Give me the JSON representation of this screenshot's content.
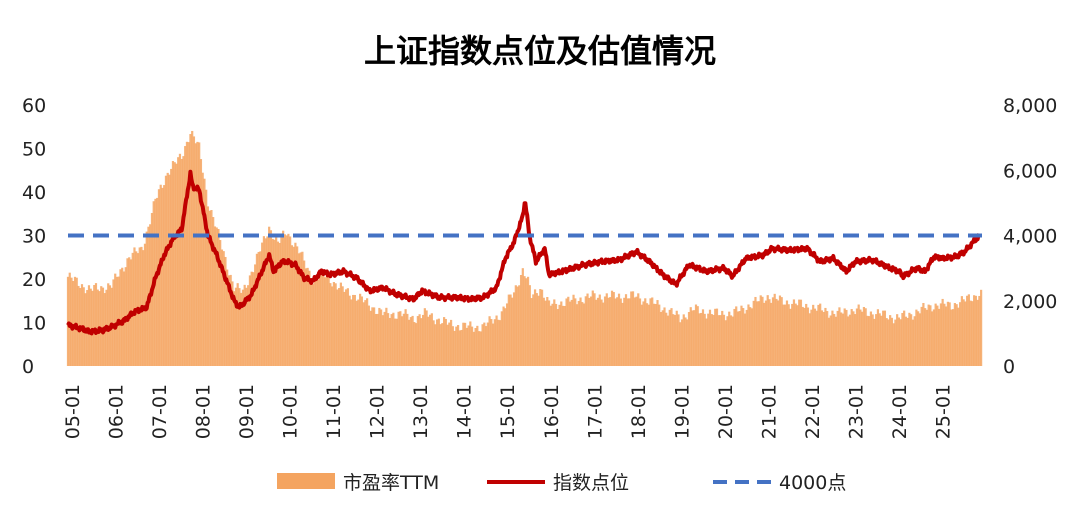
{
  "chart_data": {
    "type": "bar",
    "title": "上证指数点位及估值情况",
    "xlabel": "",
    "ylabel": "",
    "y_left": {
      "ylim": [
        0,
        60
      ],
      "ticks": [
        "0",
        "10",
        "20",
        "30",
        "40",
        "50",
        "60"
      ]
    },
    "y_right": {
      "ylim": [
        0,
        8000
      ],
      "ticks": [
        "0",
        "2,000",
        "4,000",
        "6,000",
        "8,000"
      ]
    },
    "x_ticks": [
      "05-01",
      "06-01",
      "07-01",
      "08-01",
      "09-01",
      "10-01",
      "11-01",
      "12-01",
      "13-01",
      "14-01",
      "15-01",
      "16-01",
      "17-01",
      "18-01",
      "19-01",
      "20-01",
      "21-01",
      "22-01",
      "23-01",
      "24-01",
      "25-01"
    ],
    "grid": false,
    "legend_position": "bottom",
    "series": [
      {
        "name": "市盈率TTM",
        "type": "bar",
        "axis": "left",
        "color": "#F4A460",
        "points": [
          [
            2005.0,
            20.5
          ],
          [
            2005.5,
            17.5
          ],
          [
            2006.0,
            18.5
          ],
          [
            2006.4,
            25
          ],
          [
            2006.7,
            27
          ],
          [
            2007.0,
            38
          ],
          [
            2007.3,
            45
          ],
          [
            2007.6,
            48
          ],
          [
            2007.8,
            54
          ],
          [
            2008.0,
            50
          ],
          [
            2008.2,
            38
          ],
          [
            2008.5,
            28
          ],
          [
            2008.8,
            18
          ],
          [
            2009.0,
            17
          ],
          [
            2009.3,
            24
          ],
          [
            2009.6,
            32
          ],
          [
            2009.8,
            28
          ],
          [
            2010.0,
            31
          ],
          [
            2010.3,
            26
          ],
          [
            2010.6,
            20
          ],
          [
            2010.9,
            21
          ],
          [
            2011.2,
            18
          ],
          [
            2011.6,
            16
          ],
          [
            2011.9,
            14
          ],
          [
            2012.2,
            12
          ],
          [
            2012.6,
            12
          ],
          [
            2012.9,
            11
          ],
          [
            2013.2,
            12
          ],
          [
            2013.6,
            10
          ],
          [
            2014.0,
            9
          ],
          [
            2014.5,
            9
          ],
          [
            2014.9,
            12
          ],
          [
            2015.2,
            17
          ],
          [
            2015.4,
            22
          ],
          [
            2015.5,
            20
          ],
          [
            2015.6,
            16
          ],
          [
            2015.8,
            18
          ],
          [
            2016.0,
            14
          ],
          [
            2016.5,
            15
          ],
          [
            2017.0,
            16
          ],
          [
            2017.5,
            16
          ],
          [
            2018.0,
            16
          ],
          [
            2018.5,
            14
          ],
          [
            2019.0,
            11
          ],
          [
            2019.3,
            13
          ],
          [
            2019.8,
            12
          ],
          [
            2020.2,
            12
          ],
          [
            2020.6,
            14
          ],
          [
            2021.0,
            16
          ],
          [
            2021.3,
            15
          ],
          [
            2021.8,
            14
          ],
          [
            2022.2,
            13
          ],
          [
            2022.6,
            12
          ],
          [
            2023.0,
            13
          ],
          [
            2023.5,
            12
          ],
          [
            2024.0,
            11
          ],
          [
            2024.3,
            12
          ],
          [
            2024.8,
            14
          ],
          [
            2025.2,
            14
          ],
          [
            2025.5,
            15
          ],
          [
            2025.8,
            16.5
          ]
        ]
      },
      {
        "name": "指数点位",
        "type": "line",
        "axis": "right",
        "color": "#C00000",
        "points": [
          [
            2005.0,
            1250
          ],
          [
            2005.3,
            1150
          ],
          [
            2005.5,
            1050
          ],
          [
            2005.8,
            1100
          ],
          [
            2006.0,
            1200
          ],
          [
            2006.3,
            1400
          ],
          [
            2006.5,
            1650
          ],
          [
            2006.8,
            1800
          ],
          [
            2007.0,
            2700
          ],
          [
            2007.2,
            3400
          ],
          [
            2007.4,
            3900
          ],
          [
            2007.6,
            4200
          ],
          [
            2007.8,
            5900
          ],
          [
            2007.85,
            5500
          ],
          [
            2008.0,
            5400
          ],
          [
            2008.2,
            4000
          ],
          [
            2008.4,
            3400
          ],
          [
            2008.6,
            2700
          ],
          [
            2008.8,
            2000
          ],
          [
            2008.9,
            1800
          ],
          [
            2009.0,
            1900
          ],
          [
            2009.2,
            2200
          ],
          [
            2009.5,
            3100
          ],
          [
            2009.6,
            3400
          ],
          [
            2009.7,
            2900
          ],
          [
            2009.9,
            3200
          ],
          [
            2010.0,
            3200
          ],
          [
            2010.2,
            3100
          ],
          [
            2010.4,
            2700
          ],
          [
            2010.6,
            2600
          ],
          [
            2010.8,
            2900
          ],
          [
            2011.0,
            2800
          ],
          [
            2011.3,
            2900
          ],
          [
            2011.6,
            2700
          ],
          [
            2011.9,
            2300
          ],
          [
            2012.2,
            2400
          ],
          [
            2012.5,
            2200
          ],
          [
            2012.9,
            2050
          ],
          [
            2013.1,
            2300
          ],
          [
            2013.5,
            2100
          ],
          [
            2013.9,
            2100
          ],
          [
            2014.2,
            2050
          ],
          [
            2014.5,
            2100
          ],
          [
            2014.8,
            2400
          ],
          [
            2015.0,
            3300
          ],
          [
            2015.2,
            3800
          ],
          [
            2015.4,
            4600
          ],
          [
            2015.45,
            5100
          ],
          [
            2015.55,
            4000
          ],
          [
            2015.7,
            3200
          ],
          [
            2015.9,
            3600
          ],
          [
            2016.0,
            2800
          ],
          [
            2016.3,
            2900
          ],
          [
            2016.8,
            3100
          ],
          [
            2017.2,
            3200
          ],
          [
            2017.6,
            3250
          ],
          [
            2018.0,
            3500
          ],
          [
            2018.3,
            3200
          ],
          [
            2018.6,
            2800
          ],
          [
            2018.9,
            2500
          ],
          [
            2019.2,
            3100
          ],
          [
            2019.6,
            2900
          ],
          [
            2020.0,
            3000
          ],
          [
            2020.2,
            2750
          ],
          [
            2020.5,
            3300
          ],
          [
            2020.9,
            3400
          ],
          [
            2021.1,
            3600
          ],
          [
            2021.5,
            3550
          ],
          [
            2021.9,
            3600
          ],
          [
            2022.2,
            3200
          ],
          [
            2022.5,
            3300
          ],
          [
            2022.8,
            2900
          ],
          [
            2023.0,
            3200
          ],
          [
            2023.4,
            3250
          ],
          [
            2023.8,
            3000
          ],
          [
            2024.0,
            2900
          ],
          [
            2024.1,
            2750
          ],
          [
            2024.4,
            3000
          ],
          [
            2024.6,
            2900
          ],
          [
            2024.8,
            3350
          ],
          [
            2025.0,
            3300
          ],
          [
            2025.3,
            3350
          ],
          [
            2025.5,
            3500
          ],
          [
            2025.7,
            3800
          ],
          [
            2025.85,
            4000
          ]
        ]
      },
      {
        "name": "4000点",
        "type": "line",
        "axis": "right",
        "color": "#4472C4",
        "dashed": true,
        "points": [
          [
            2005.0,
            4000
          ],
          [
            2025.9,
            4000
          ]
        ]
      }
    ]
  }
}
